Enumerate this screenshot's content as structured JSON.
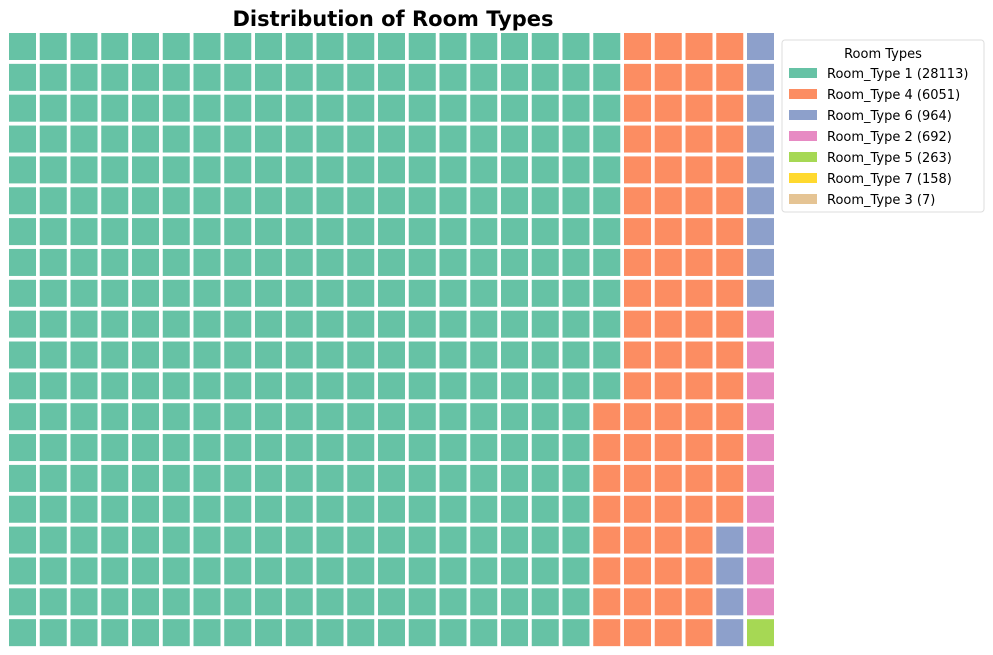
{
  "chart_data": {
    "type": "waffle",
    "title": "Distribution of Room Types",
    "rows": 20,
    "columns": 25,
    "total_cells": 500,
    "fill_order": "column-major, top to bottom, left to right",
    "legend": {
      "title": "Room Types",
      "placement": "upper-right, outside plot"
    },
    "series": [
      {
        "name": "Room_Type 1",
        "count": 28113,
        "label": "Room_Type 1 (28113)",
        "cells": 392,
        "color": "#66c2a5"
      },
      {
        "name": "Room_Type 4",
        "count": 6051,
        "label": "Room_Type 4 (6051)",
        "cells": 84,
        "color": "#fc8d62"
      },
      {
        "name": "Room_Type 6",
        "count": 964,
        "label": "Room_Type 6 (964)",
        "cells": 13,
        "color": "#8da0cb"
      },
      {
        "name": "Room_Type 2",
        "count": 692,
        "label": "Room_Type 2 (692)",
        "cells": 10,
        "color": "#e78ac3"
      },
      {
        "name": "Room_Type 5",
        "count": 263,
        "label": "Room_Type 5 (263)",
        "cells": 4,
        "color": "#a6d854"
      },
      {
        "name": "Room_Type 7",
        "count": 158,
        "label": "Room_Type 7 (158)",
        "cells": 2,
        "color": "#ffd92f"
      },
      {
        "name": "Room_Type 3",
        "count": 7,
        "label": "Room_Type 3 (7)",
        "cells": 0,
        "color": "#e5c494"
      }
    ]
  }
}
